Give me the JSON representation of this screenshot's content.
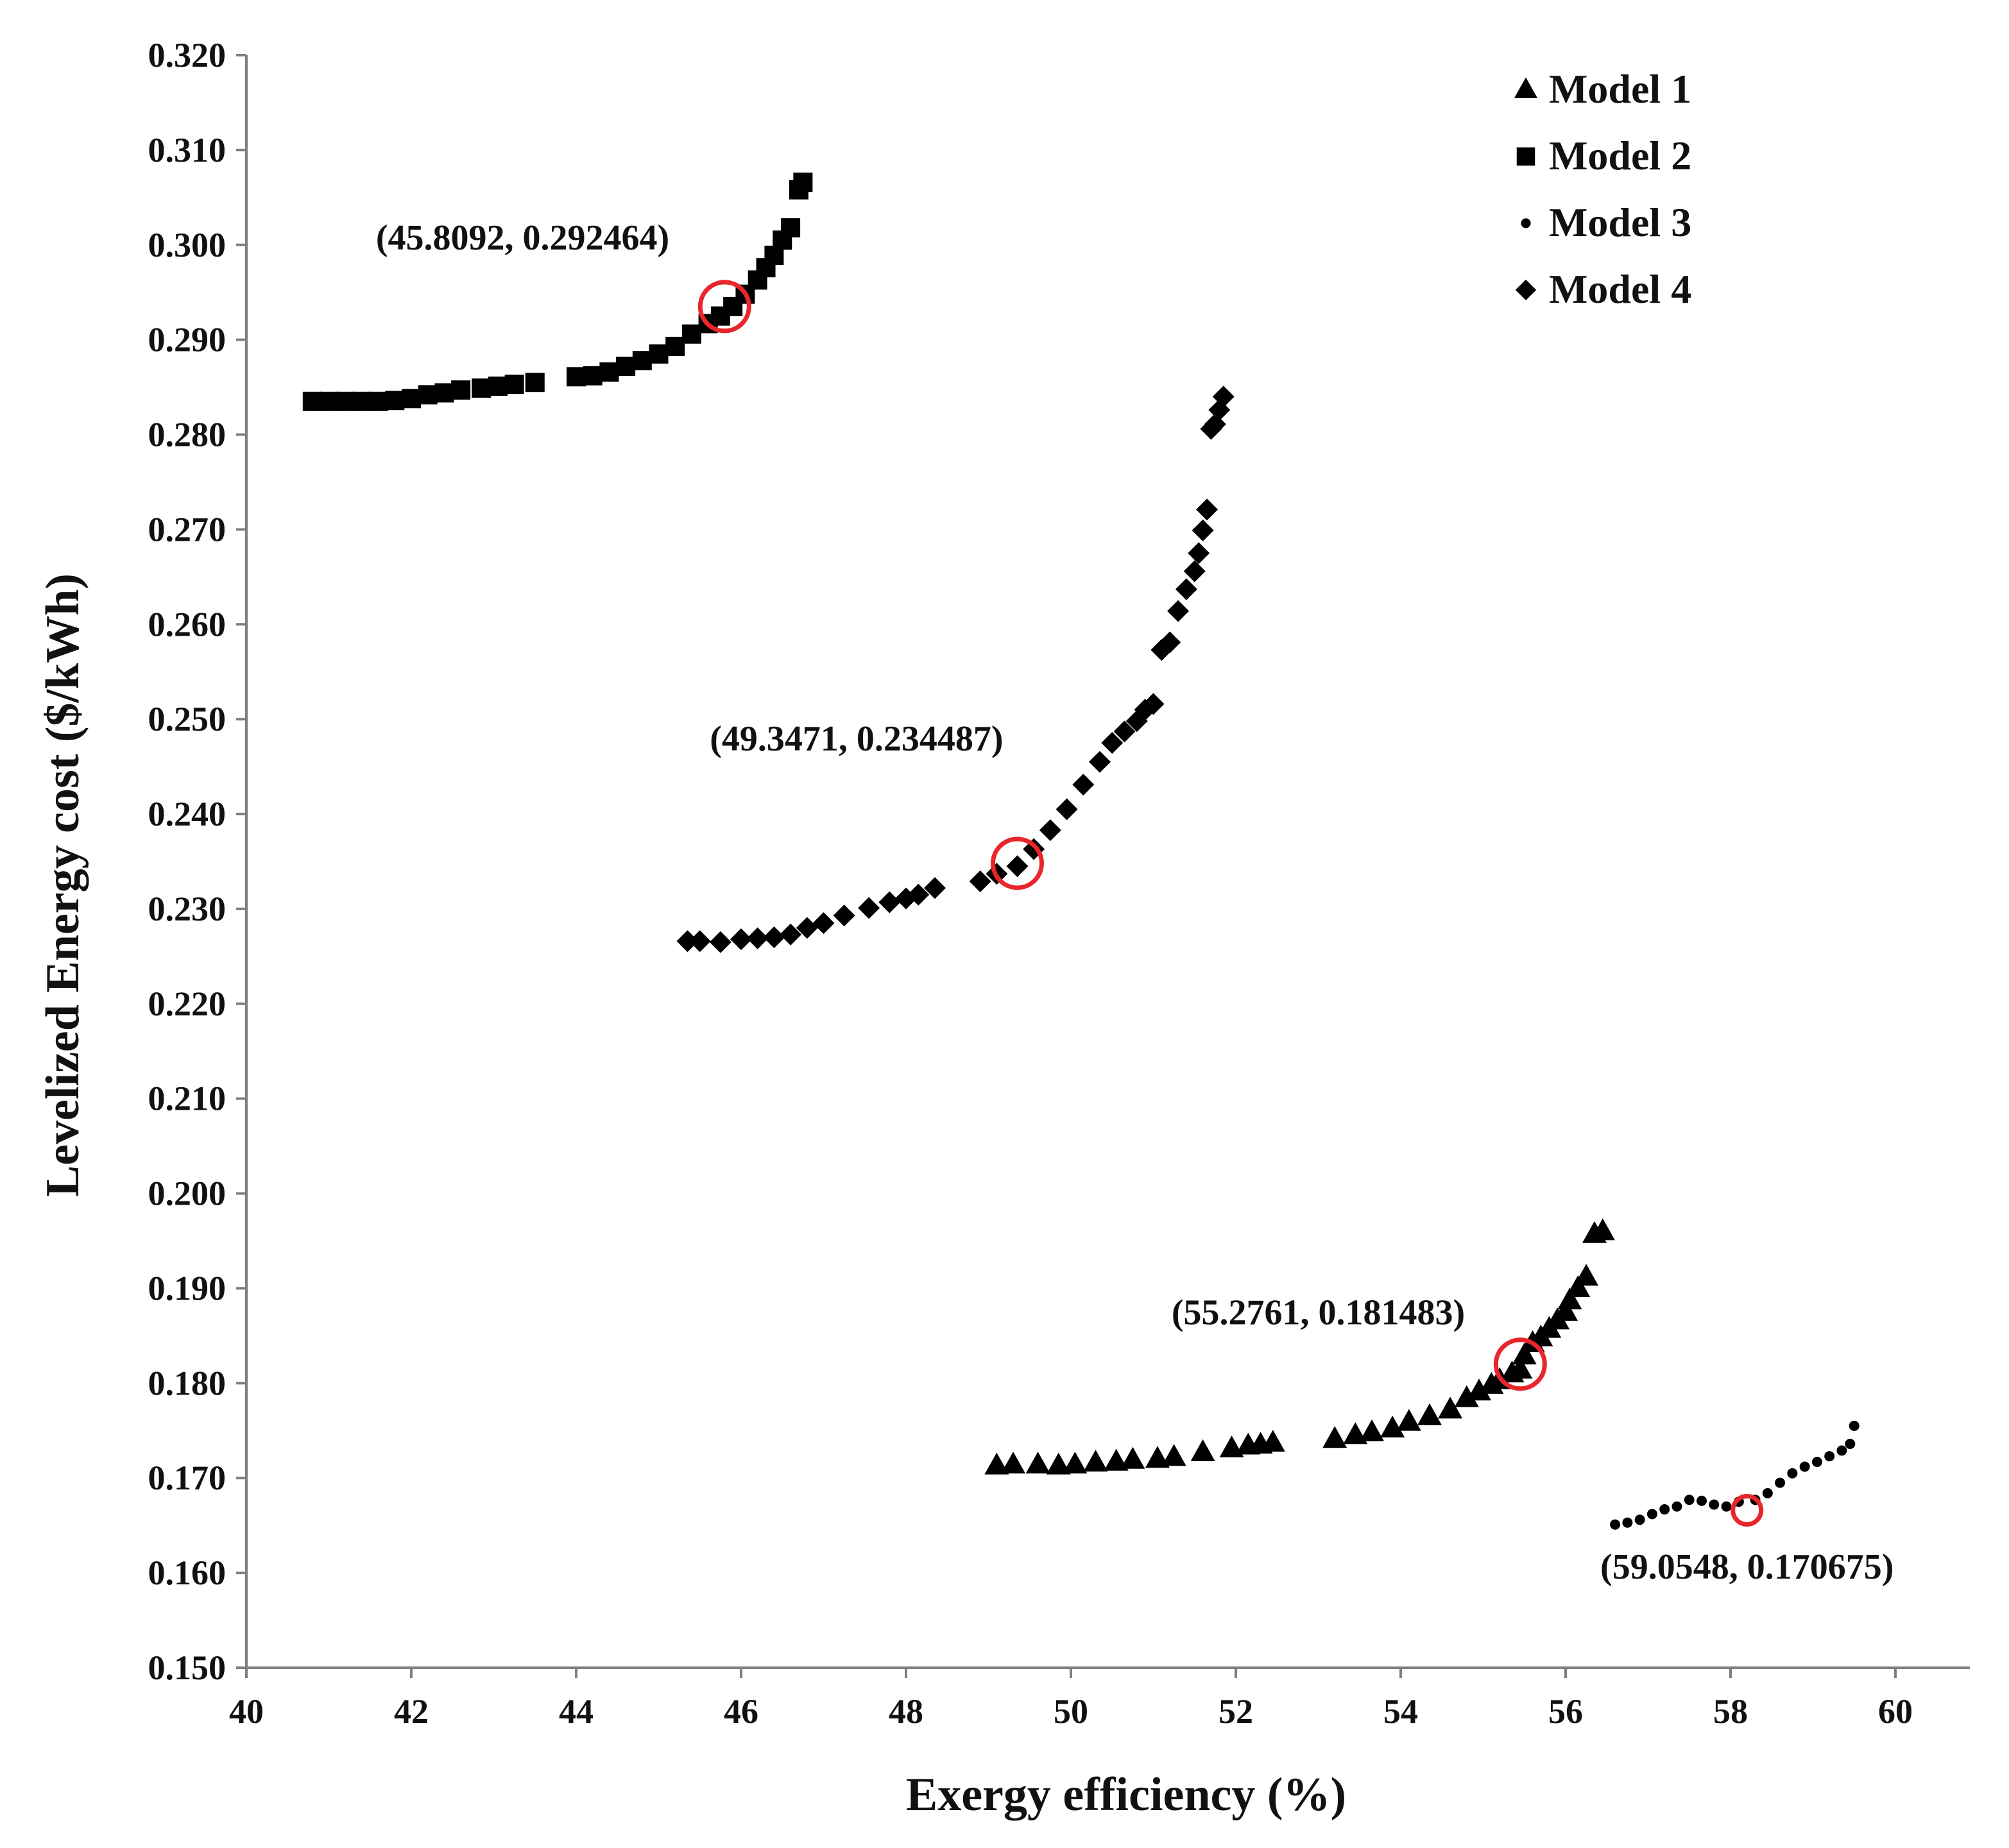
{
  "chart_data": {
    "type": "scatter",
    "title": "",
    "xlabel": "Exergy efficiency (%)",
    "ylabel": "Levelized Energy cost ($/kWh)",
    "xlim": [
      40,
      61
    ],
    "ylim": [
      0.15,
      0.32
    ],
    "xticks": [
      40,
      42,
      44,
      46,
      48,
      50,
      52,
      54,
      56,
      58,
      60
    ],
    "xtick_labels": [
      "40",
      "42",
      "44",
      "46",
      "48",
      "50",
      "52",
      "54",
      "56",
      "58",
      "60"
    ],
    "yticks": [
      0.15,
      0.16,
      0.17,
      0.18,
      0.19,
      0.2,
      0.21,
      0.22,
      0.23,
      0.24,
      0.25,
      0.26,
      0.27,
      0.28,
      0.29,
      0.3,
      0.31,
      0.32
    ],
    "ytick_labels": [
      "0.150",
      "0.160",
      "0.170",
      "0.180",
      "0.190",
      "0.200",
      "0.210",
      "0.220",
      "0.230",
      "0.240",
      "0.250",
      "0.260",
      "0.270",
      "0.280",
      "0.290",
      "0.300",
      "0.310",
      "0.320"
    ],
    "grid": false,
    "legend_position": "top-right",
    "marker_color": "#000000",
    "highlight_color": "#e8262b",
    "series": [
      {
        "name": "Model 1",
        "marker": "triangle",
        "x": [
          49.1,
          49.3,
          49.6,
          49.85,
          50.05,
          50.3,
          50.55,
          50.75,
          51.05,
          51.25,
          51.6,
          51.95,
          52.15,
          52.3,
          52.45,
          53.2,
          53.45,
          53.65,
          53.9,
          54.1,
          54.35,
          54.6,
          54.8,
          54.95,
          55.1,
          55.2,
          55.35,
          55.45,
          55.5,
          55.6,
          55.7,
          55.8,
          55.9,
          56.0,
          56.05,
          56.15,
          56.25,
          56.35,
          56.45
        ],
        "y": [
          0.1713,
          0.1714,
          0.1714,
          0.1713,
          0.1714,
          0.1716,
          0.1717,
          0.1719,
          0.172,
          0.1722,
          0.1727,
          0.1731,
          0.1734,
          0.1735,
          0.1737,
          0.1741,
          0.1745,
          0.1748,
          0.1752,
          0.1759,
          0.1765,
          0.1772,
          0.1784,
          0.1791,
          0.1798,
          0.1803,
          0.181,
          0.1814,
          0.1829,
          0.1842,
          0.1848,
          0.1857,
          0.1866,
          0.1875,
          0.1887,
          0.19,
          0.1912,
          0.1957,
          0.196
        ]
      },
      {
        "name": "Model 2",
        "marker": "square",
        "x": [
          40.8,
          41.0,
          41.2,
          41.4,
          41.6,
          41.8,
          42.0,
          42.2,
          42.4,
          42.6,
          42.85,
          43.05,
          43.25,
          43.5,
          44.0,
          44.2,
          44.4,
          44.6,
          44.8,
          45.0,
          45.2,
          45.4,
          45.6,
          45.75,
          45.9,
          46.05,
          46.2,
          46.3,
          46.4,
          46.5,
          46.6,
          46.7,
          46.75
        ],
        "y": [
          0.2835,
          0.2835,
          0.2835,
          0.2835,
          0.2835,
          0.2836,
          0.2838,
          0.2842,
          0.2844,
          0.2847,
          0.2849,
          0.2851,
          0.2853,
          0.2855,
          0.2861,
          0.2862,
          0.2866,
          0.2872,
          0.2878,
          0.2885,
          0.2893,
          0.2906,
          0.2917,
          0.2925,
          0.2935,
          0.2948,
          0.2963,
          0.2976,
          0.2989,
          0.3005,
          0.3018,
          0.3058,
          0.3066
        ]
      },
      {
        "name": "Model 3",
        "marker": "dot",
        "x": [
          56.6,
          56.75,
          56.9,
          57.05,
          57.2,
          57.35,
          57.5,
          57.65,
          57.8,
          57.95,
          58.1,
          58.3,
          58.45,
          58.6,
          58.75,
          58.9,
          59.05,
          59.2,
          59.35,
          59.45,
          59.5
        ],
        "y": [
          0.1651,
          0.1653,
          0.1656,
          0.1662,
          0.1667,
          0.167,
          0.1677,
          0.1676,
          0.1672,
          0.167,
          0.1675,
          0.1677,
          0.1684,
          0.1695,
          0.1705,
          0.1712,
          0.1717,
          0.1723,
          0.1729,
          0.1736,
          0.1755
        ]
      },
      {
        "name": "Model 4",
        "marker": "diamond",
        "x": [
          45.35,
          45.5,
          45.75,
          46.0,
          46.2,
          46.4,
          46.6,
          46.8,
          47.0,
          47.25,
          47.55,
          47.8,
          48.0,
          48.15,
          48.35,
          48.9,
          49.1,
          49.35,
          49.55,
          49.75,
          49.95,
          50.15,
          50.35,
          50.5,
          50.65,
          50.8,
          50.9,
          51.0,
          51.1,
          51.2,
          51.3,
          51.4,
          51.5,
          51.55,
          51.6,
          51.65,
          51.7,
          51.75,
          51.8,
          51.85
        ],
        "y": [
          0.2266,
          0.2266,
          0.2265,
          0.2268,
          0.2269,
          0.227,
          0.2273,
          0.228,
          0.2285,
          0.2293,
          0.2301,
          0.2307,
          0.2311,
          0.2315,
          0.2322,
          0.2329,
          0.2337,
          0.2345,
          0.2363,
          0.2383,
          0.2405,
          0.2431,
          0.2455,
          0.2475,
          0.2487,
          0.2498,
          0.251,
          0.2516,
          0.2573,
          0.2581,
          0.2614,
          0.2637,
          0.2656,
          0.2675,
          0.2699,
          0.2721,
          0.2806,
          0.2811,
          0.2826,
          0.284
        ]
      }
    ],
    "annotations": [
      {
        "label": "(45.8092, 0.292464)",
        "x": 45.8092,
        "y": 0.292464,
        "text_x": 43.35,
        "text_y": 0.2995,
        "marker_x": 45.8,
        "marker_y": 0.2935
      },
      {
        "label": "(49.3471, 0.234487)",
        "x": 49.3471,
        "y": 0.234487,
        "text_x": 47.4,
        "text_y": 0.2467,
        "marker_x": 49.35,
        "marker_y": 0.2348
      },
      {
        "label": "(55.2761, 0.181483)",
        "x": 55.2761,
        "y": 0.181483,
        "text_x": 53.0,
        "text_y": 0.1862,
        "marker_x": 55.45,
        "marker_y": 0.182
      },
      {
        "label": "(59.0548, 0.170675)",
        "x": 59.0548,
        "y": 0.170675,
        "text_x": 58.2,
        "text_y": 0.1594,
        "marker_x": 58.2,
        "marker_y": 0.1666
      }
    ]
  }
}
